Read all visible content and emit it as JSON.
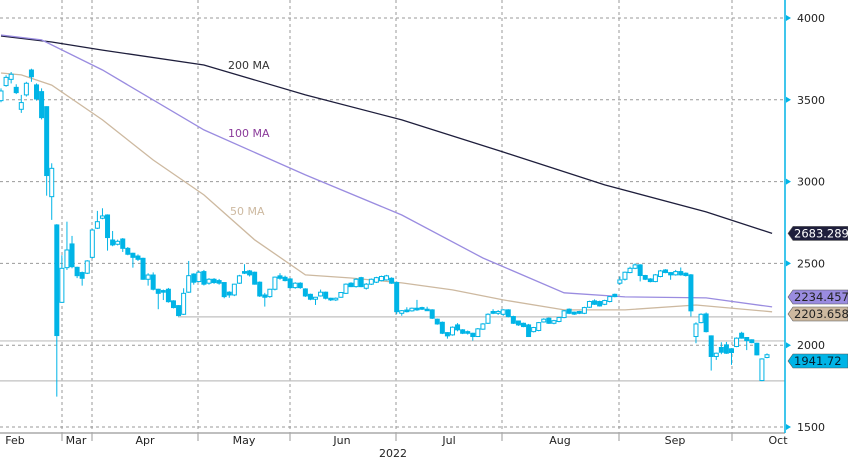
{
  "chart_data": {
    "type": "candlestick",
    "title": "",
    "xlabel": "2022",
    "ylabel": "",
    "ylim": [
      1500,
      4000
    ],
    "y_ticks": [
      1500,
      2000,
      2500,
      3000,
      3500,
      4000
    ],
    "y_axis_side": "right",
    "x_ticks": [
      "Feb",
      "Mar",
      "Apr",
      "May",
      "Jun",
      "Jul",
      "Aug",
      "Sep",
      "Oct"
    ],
    "grid": true,
    "candle_color": "#00b4e6",
    "candles_ohlc": [
      [
        3495,
        3570,
        3485,
        3554
      ],
      [
        3587,
        3650,
        3580,
        3637
      ],
      [
        3625,
        3670,
        3600,
        3656
      ],
      [
        3576,
        3595,
        3535,
        3544
      ],
      [
        3442,
        3530,
        3420,
        3483
      ],
      [
        3530,
        3610,
        3520,
        3601
      ],
      [
        3682,
        3690,
        3610,
        3641
      ],
      [
        3591,
        3600,
        3495,
        3505
      ],
      [
        3550,
        3570,
        3380,
        3391
      ],
      [
        3458,
        3460,
        2914,
        3037
      ],
      [
        2908,
        3112,
        2766,
        3081
      ],
      [
        2735,
        2740,
        1686,
        2059
      ],
      [
        2262,
        2550,
        2260,
        2470
      ],
      [
        2474,
        2755,
        2460,
        2582
      ],
      [
        2619,
        2668,
        2470,
        2480
      ],
      [
        2476,
        2480,
        2410,
        2425
      ],
      [
        2444,
        2450,
        2364,
        2409
      ],
      [
        2440,
        2520,
        2435,
        2515
      ],
      [
        2537,
        2710,
        2530,
        2704
      ],
      [
        2715,
        2821,
        2710,
        2755
      ],
      [
        2776,
        2837,
        2770,
        2790
      ],
      [
        2796,
        2800,
        2578,
        2658
      ],
      [
        2643,
        2698,
        2605,
        2613
      ],
      [
        2617,
        2645,
        2610,
        2635
      ],
      [
        2649,
        2655,
        2570,
        2592
      ],
      [
        2592,
        2600,
        2550,
        2556
      ],
      [
        2562,
        2565,
        2474,
        2537
      ],
      [
        2545,
        2555,
        2515,
        2525
      ],
      [
        2531,
        2535,
        2400,
        2403
      ],
      [
        2403,
        2440,
        2364,
        2429
      ],
      [
        2429,
        2445,
        2335,
        2342
      ],
      [
        2342,
        2345,
        2220,
        2317
      ],
      [
        2334,
        2340,
        2276,
        2324
      ],
      [
        2342,
        2350,
        2260,
        2266
      ],
      [
        2271,
        2275,
        2225,
        2230
      ],
      [
        2242,
        2245,
        2176,
        2181
      ],
      [
        2189,
        2348,
        2185,
        2317
      ],
      [
        2324,
        2515,
        2320,
        2425
      ],
      [
        2435,
        2440,
        2370,
        2385
      ],
      [
        2389,
        2455,
        2385,
        2446
      ],
      [
        2450,
        2460,
        2365,
        2373
      ],
      [
        2379,
        2410,
        2370,
        2403
      ],
      [
        2403,
        2410,
        2375,
        2383
      ],
      [
        2395,
        2405,
        2370,
        2379
      ],
      [
        2383,
        2385,
        2287,
        2297
      ],
      [
        2324,
        2330,
        2290,
        2307
      ],
      [
        2307,
        2375,
        2300,
        2373
      ],
      [
        2379,
        2430,
        2375,
        2424
      ],
      [
        2450,
        2495,
        2435,
        2440
      ],
      [
        2454,
        2460,
        2420,
        2430
      ],
      [
        2446,
        2450,
        2370,
        2373
      ],
      [
        2385,
        2390,
        2295,
        2301
      ],
      [
        2307,
        2320,
        2236,
        2293
      ],
      [
        2297,
        2345,
        2290,
        2342
      ],
      [
        2342,
        2420,
        2335,
        2416
      ],
      [
        2424,
        2440,
        2400,
        2409
      ],
      [
        2415,
        2425,
        2390,
        2395
      ],
      [
        2405,
        2410,
        2345,
        2352
      ],
      [
        2352,
        2385,
        2345,
        2379
      ],
      [
        2379,
        2385,
        2345,
        2352
      ],
      [
        2344,
        2348,
        2295,
        2301
      ],
      [
        2311,
        2315,
        2275,
        2281
      ],
      [
        2281,
        2295,
        2246,
        2293
      ],
      [
        2301,
        2340,
        2297,
        2324
      ],
      [
        2324,
        2328,
        2280,
        2287
      ],
      [
        2287,
        2290,
        2270,
        2277
      ],
      [
        2277,
        2292,
        2270,
        2287
      ],
      [
        2293,
        2325,
        2290,
        2322
      ],
      [
        2317,
        2378,
        2313,
        2373
      ],
      [
        2379,
        2385,
        2355,
        2358
      ],
      [
        2358,
        2410,
        2352,
        2403
      ],
      [
        2413,
        2418,
        2355,
        2358
      ],
      [
        2348,
        2380,
        2340,
        2373
      ],
      [
        2373,
        2408,
        2368,
        2403
      ],
      [
        2385,
        2418,
        2380,
        2413
      ],
      [
        2395,
        2425,
        2390,
        2420
      ],
      [
        2399,
        2430,
        2395,
        2424
      ],
      [
        2409,
        2415,
        2375,
        2379
      ],
      [
        2383,
        2390,
        2190,
        2205
      ],
      [
        2195,
        2215,
        2180,
        2211
      ],
      [
        2215,
        2232,
        2200,
        2205
      ],
      [
        2210,
        2230,
        2205,
        2226
      ],
      [
        2226,
        2277,
        2210,
        2216
      ],
      [
        2230,
        2235,
        2215,
        2220
      ],
      [
        2220,
        2235,
        2210,
        2216
      ],
      [
        2216,
        2220,
        2160,
        2165
      ],
      [
        2159,
        2163,
        2125,
        2130
      ],
      [
        2140,
        2145,
        2068,
        2073
      ],
      [
        2077,
        2080,
        2040,
        2057
      ],
      [
        2063,
        2115,
        2058,
        2110
      ],
      [
        2124,
        2135,
        2085,
        2094
      ],
      [
        2094,
        2098,
        2068,
        2073
      ],
      [
        2083,
        2090,
        2065,
        2073
      ],
      [
        2073,
        2076,
        2028,
        2053
      ],
      [
        2053,
        2105,
        2050,
        2100
      ],
      [
        2098,
        2135,
        2094,
        2130
      ],
      [
        2134,
        2195,
        2130,
        2189
      ],
      [
        2206,
        2220,
        2190,
        2195
      ],
      [
        2195,
        2215,
        2185,
        2206
      ],
      [
        2189,
        2220,
        2180,
        2216
      ],
      [
        2216,
        2220,
        2170,
        2175
      ],
      [
        2175,
        2180,
        2130,
        2134
      ],
      [
        2148,
        2150,
        2118,
        2124
      ],
      [
        2134,
        2138,
        2110,
        2114
      ],
      [
        2124,
        2130,
        2050,
        2053
      ],
      [
        2083,
        2112,
        2078,
        2108
      ],
      [
        2090,
        2142,
        2085,
        2138
      ],
      [
        2142,
        2165,
        2138,
        2159
      ],
      [
        2165,
        2170,
        2130,
        2134
      ],
      [
        2134,
        2155,
        2128,
        2150
      ],
      [
        2145,
        2173,
        2140,
        2169
      ],
      [
        2169,
        2215,
        2165,
        2210
      ],
      [
        2220,
        2225,
        2190,
        2195
      ],
      [
        2202,
        2206,
        2185,
        2190
      ],
      [
        2206,
        2210,
        2190,
        2195
      ],
      [
        2195,
        2235,
        2190,
        2230
      ],
      [
        2232,
        2272,
        2228,
        2267
      ],
      [
        2271,
        2280,
        2246,
        2250
      ],
      [
        2267,
        2272,
        2236,
        2240
      ],
      [
        2250,
        2278,
        2245,
        2273
      ],
      [
        2267,
        2300,
        2262,
        2297
      ],
      [
        2311,
        2315,
        2293,
        2297
      ],
      [
        2379,
        2420,
        2370,
        2399
      ],
      [
        2403,
        2450,
        2395,
        2446
      ],
      [
        2444,
        2480,
        2440,
        2470
      ],
      [
        2470,
        2500,
        2465,
        2491
      ],
      [
        2491,
        2495,
        2390,
        2426
      ],
      [
        2426,
        2430,
        2398,
        2403
      ],
      [
        2405,
        2410,
        2384,
        2389
      ],
      [
        2389,
        2435,
        2385,
        2430
      ],
      [
        2420,
        2460,
        2415,
        2454
      ],
      [
        2460,
        2465,
        2440,
        2444
      ],
      [
        2444,
        2446,
        2400,
        2430
      ],
      [
        2430,
        2460,
        2425,
        2450
      ],
      [
        2450,
        2475,
        2425,
        2430
      ],
      [
        2440,
        2445,
        2420,
        2426
      ],
      [
        2430,
        2435,
        2175,
        2210
      ],
      [
        2053,
        2140,
        2012,
        2130
      ],
      [
        2138,
        2195,
        2134,
        2189
      ],
      [
        2191,
        2200,
        2078,
        2083
      ],
      [
        2057,
        2060,
        1845,
        1931
      ],
      [
        1931,
        1955,
        1910,
        1951
      ],
      [
        1986,
        2018,
        1945,
        1957
      ],
      [
        2002,
        2020,
        1947,
        1951
      ],
      [
        1978,
        1982,
        1880,
        1955
      ],
      [
        1992,
        2048,
        1988,
        2043
      ],
      [
        2073,
        2082,
        2040,
        2043
      ],
      [
        2047,
        2050,
        1970,
        2028
      ],
      [
        2033,
        2036,
        2012,
        2016
      ],
      [
        2012,
        2015,
        1938,
        1941
      ],
      [
        1784,
        1920,
        1780,
        1916
      ],
      [
        1925,
        1950,
        1920,
        1941.72
      ]
    ],
    "series": [
      {
        "name": "200 MA",
        "color": "#1e1e3c",
        "last_value": "2683.2891",
        "points": [
          [
            0,
            3890
          ],
          [
            10,
            3853
          ],
          [
            20,
            3804
          ],
          [
            40,
            3713
          ],
          [
            60,
            3530
          ],
          [
            79,
            3377
          ],
          [
            99,
            3181
          ],
          [
            119,
            2980
          ],
          [
            139,
            2815
          ],
          [
            152,
            2683.29
          ]
        ]
      },
      {
        "name": "100 MA",
        "color": "#9a8ce0",
        "last_value": "2234.4573",
        "points": [
          [
            0,
            3896
          ],
          [
            8,
            3866
          ],
          [
            20,
            3682
          ],
          [
            40,
            3316
          ],
          [
            60,
            3041
          ],
          [
            79,
            2796
          ],
          [
            95,
            2533
          ],
          [
            111,
            2320
          ],
          [
            123,
            2295
          ],
          [
            139,
            2289
          ],
          [
            152,
            2234
          ]
        ]
      },
      {
        "name": "50 MA",
        "color": "#cdb9a0",
        "last_value": "2203.6582",
        "points": [
          [
            0,
            3664
          ],
          [
            4,
            3652
          ],
          [
            10,
            3590
          ],
          [
            20,
            3377
          ],
          [
            30,
            3132
          ],
          [
            40,
            2919
          ],
          [
            50,
            2644
          ],
          [
            60,
            2430
          ],
          [
            69,
            2411
          ],
          [
            79,
            2381
          ],
          [
            89,
            2338
          ],
          [
            99,
            2277
          ],
          [
            111,
            2216
          ],
          [
            123,
            2216
          ],
          [
            137,
            2246
          ],
          [
            152,
            2204
          ]
        ]
      }
    ],
    "last_price": {
      "label": "1941.72",
      "color": "#00b4e6"
    },
    "horizontal_lines": [
      2173,
      2026,
      1782
    ]
  }
}
